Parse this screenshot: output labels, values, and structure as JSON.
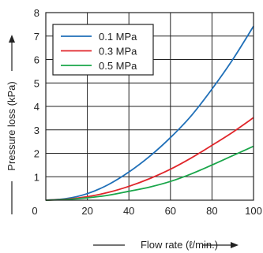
{
  "chart_data": {
    "type": "line",
    "title": "",
    "xlabel": "Flow rate (ℓ/min.)",
    "ylabel": "Pressure loss (kPa)",
    "xlim": [
      0,
      100
    ],
    "ylim": [
      0,
      8
    ],
    "x_ticks": [
      0,
      20,
      40,
      60,
      80,
      100
    ],
    "y_ticks": [
      1,
      2,
      3,
      4,
      5,
      6,
      7,
      8
    ],
    "grid": true,
    "legend_position": "top-left",
    "series": [
      {
        "name": "0.1 MPa",
        "color": "#1f6fb8",
        "x": [
          0,
          10,
          20,
          30,
          40,
          50,
          60,
          70,
          80,
          90,
          100
        ],
        "y": [
          0,
          0.07,
          0.28,
          0.66,
          1.2,
          1.87,
          2.67,
          3.6,
          4.74,
          6.0,
          7.42
        ]
      },
      {
        "name": "0.3 MPa",
        "color": "#e0262b",
        "x": [
          0,
          10,
          20,
          30,
          40,
          50,
          60,
          70,
          80,
          90,
          100
        ],
        "y": [
          0,
          0.04,
          0.15,
          0.33,
          0.59,
          0.92,
          1.32,
          1.8,
          2.34,
          2.9,
          3.52
        ]
      },
      {
        "name": "0.5 MPa",
        "color": "#1aa64a",
        "x": [
          0,
          10,
          20,
          30,
          40,
          50,
          60,
          70,
          80,
          90,
          100
        ],
        "y": [
          0,
          0.03,
          0.1,
          0.21,
          0.38,
          0.56,
          0.8,
          1.12,
          1.5,
          1.9,
          2.3
        ]
      }
    ]
  }
}
